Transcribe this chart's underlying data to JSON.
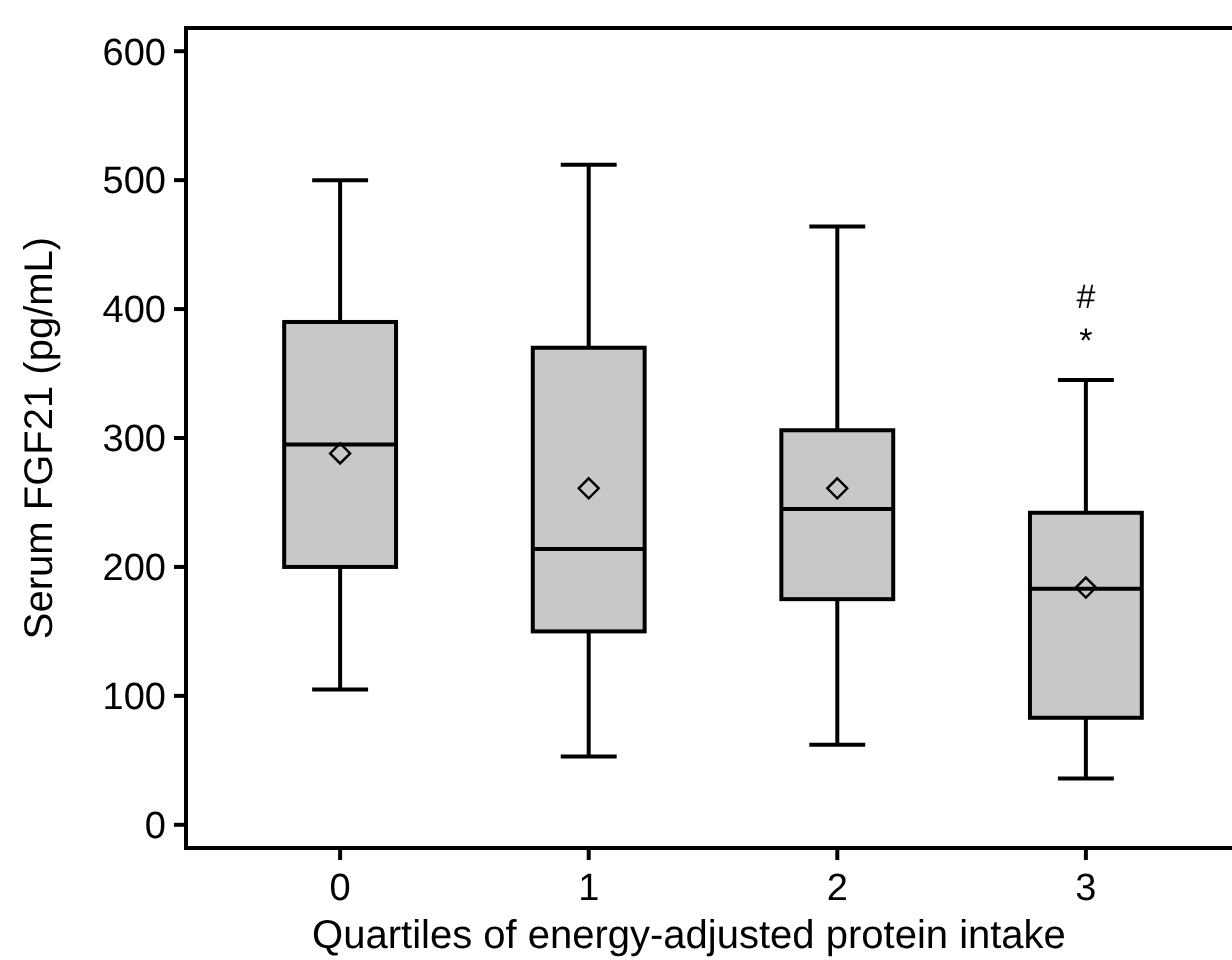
{
  "chart_data": {
    "type": "box",
    "xlabel": "Quartiles of energy-adjusted protein intake",
    "ylabel": "Serum FGF21 (pg/mL)",
    "categories": [
      "0",
      "1",
      "2",
      "3"
    ],
    "color": "#c8c8c8",
    "boxes": [
      {
        "low": 105,
        "q1": 200,
        "median": 295,
        "q3": 390,
        "high": 500,
        "mean": 288
      },
      {
        "low": 53,
        "q1": 150,
        "median": 214,
        "q3": 370,
        "high": 512,
        "mean": 261
      },
      {
        "low": 62,
        "q1": 175,
        "median": 245,
        "q3": 306,
        "high": 464,
        "mean": 261
      },
      {
        "low": 36,
        "q1": 83,
        "median": 183,
        "q3": 242,
        "high": 345,
        "mean": 184
      }
    ],
    "ylim": [
      -18,
      618
    ],
    "yticks": [
      0,
      100,
      200,
      300,
      400,
      500,
      600
    ],
    "grid": false,
    "annotations": [
      "#",
      "*"
    ]
  }
}
